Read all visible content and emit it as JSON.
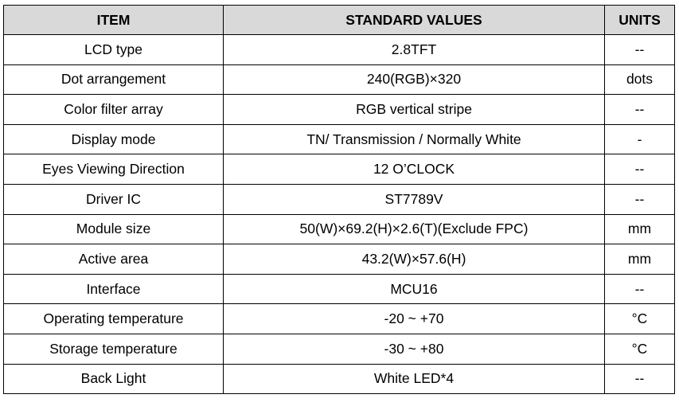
{
  "table": {
    "headers": [
      "ITEM",
      "STANDARD VALUES",
      "UNITS"
    ],
    "rows": [
      {
        "item": "LCD type",
        "value": "2.8TFT",
        "unit": "--"
      },
      {
        "item": "Dot arrangement",
        "value": "240(RGB)×320",
        "unit": "dots"
      },
      {
        "item": "Color filter array",
        "value": "RGB vertical stripe",
        "unit": "--"
      },
      {
        "item": "Display mode",
        "value": "TN/ Transmission / Normally White",
        "unit": "-"
      },
      {
        "item": "Eyes Viewing Direction",
        "value": "12 O’CLOCK",
        "unit": "--"
      },
      {
        "item": "Driver IC",
        "value": "ST7789V",
        "unit": "--"
      },
      {
        "item": "Module size",
        "value": "50(W)×69.2(H)×2.6(T)(Exclude FPC)",
        "unit": "mm"
      },
      {
        "item": "Active area",
        "value": "43.2(W)×57.6(H)",
        "unit": "mm"
      },
      {
        "item": "Interface",
        "value": "MCU16",
        "unit": "--"
      },
      {
        "item": "Operating temperature",
        "value": "-20 ~ +70",
        "unit": "°C"
      },
      {
        "item": "Storage temperature",
        "value": "-30 ~ +80",
        "unit": "°C"
      },
      {
        "item": "Back Light",
        "value": "White LED*4",
        "unit": "--"
      }
    ]
  }
}
